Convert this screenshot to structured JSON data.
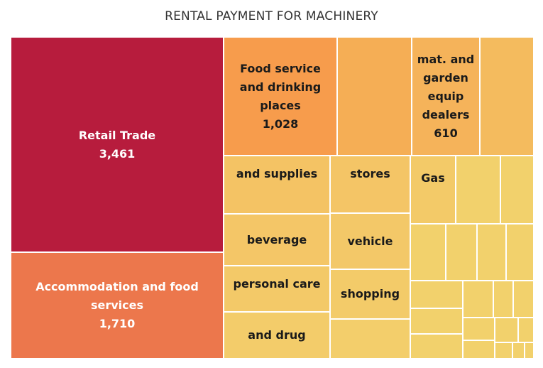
{
  "chart_data": {
    "type": "treemap",
    "title": "RENTAL PAYMENT FOR MACHINERY",
    "items": [
      {
        "label": "Retail Trade",
        "value": "3,461",
        "color": "#b71c3d"
      },
      {
        "label": "Accommodation and food services",
        "value": "1,710",
        "color": "#ec774c"
      },
      {
        "label": "Food service and drinking places",
        "value": "1,028",
        "color": "#f79c4c"
      },
      {
        "label": "",
        "value": "",
        "color": "#f5ae55"
      },
      {
        "label": "mat. and garden equip dealers",
        "value": "610",
        "color": "#f5b35a"
      },
      {
        "label": "",
        "value": "",
        "color": "#f4bb5e"
      },
      {
        "label": "and supplies",
        "value": "",
        "color": "#f4c364"
      },
      {
        "label": "stores",
        "value": "",
        "color": "#f4c566"
      },
      {
        "label": "Gas",
        "value": "",
        "color": "#f3ca68"
      },
      {
        "label": "beverage",
        "value": "",
        "color": "#f4c667"
      },
      {
        "label": "vehicle",
        "value": "",
        "color": "#f3c868"
      },
      {
        "label": "personal care",
        "value": "",
        "color": "#f3c968"
      },
      {
        "label": "shopping",
        "value": "",
        "color": "#f3cb69"
      },
      {
        "label": "and drug",
        "value": "",
        "color": "#f3cc6a"
      },
      {
        "label": "",
        "value": "",
        "color": "#f3ce6b"
      }
    ],
    "minor_color": "#f2d16c"
  }
}
